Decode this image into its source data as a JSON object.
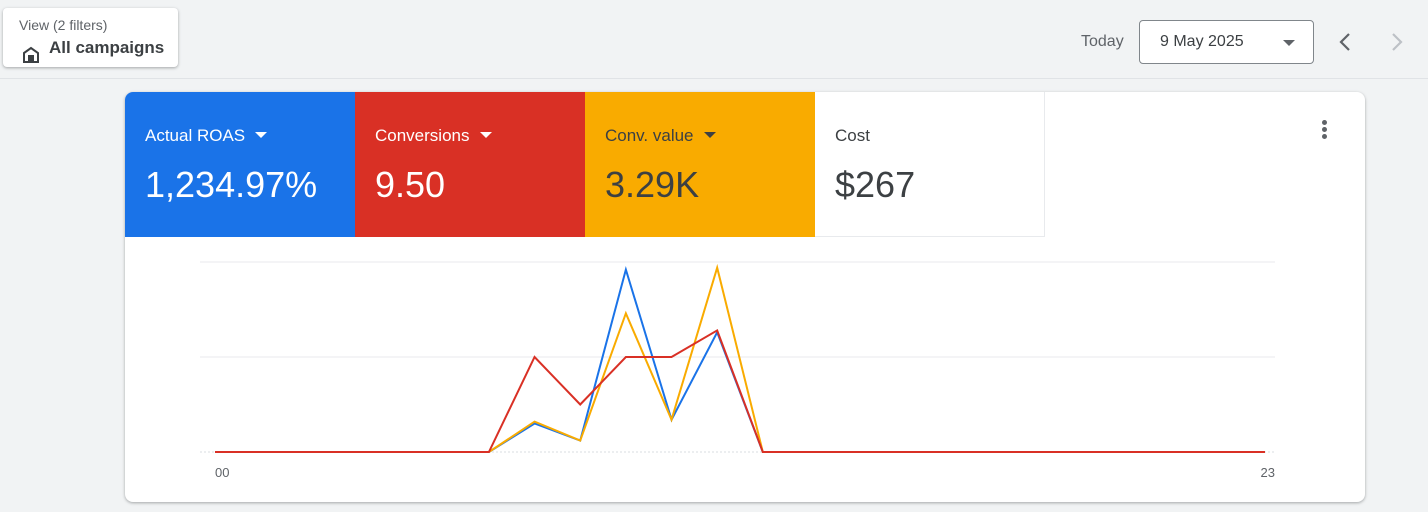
{
  "filters": {
    "label": "View (2 filters)",
    "value": "All campaigns",
    "icon": "store-icon"
  },
  "date_picker": {
    "label": "Today",
    "value": "9 May 2025",
    "prev_icon": "chevron-left-icon",
    "next_icon": "chevron-right-icon"
  },
  "metrics": [
    {
      "label": "Actual ROAS",
      "value": "1,234.97%",
      "color": "#1a73e8",
      "has_dropdown": true
    },
    {
      "label": "Conversions",
      "value": "9.50",
      "color": "#d93025",
      "has_dropdown": true
    },
    {
      "label": "Conv. value",
      "value": "3.29K",
      "color": "#f9ab00",
      "has_dropdown": true
    },
    {
      "label": "Cost",
      "value": "$267",
      "color": "#ffffff",
      "has_dropdown": false
    }
  ],
  "more_icon": "more-vert-icon",
  "chart_data": {
    "type": "line",
    "x": [
      0,
      1,
      2,
      3,
      4,
      5,
      6,
      7,
      8,
      9,
      10,
      11,
      12,
      13,
      14,
      15,
      16,
      17,
      18,
      19,
      20,
      21,
      22,
      23
    ],
    "x_tick_labels": [
      "00",
      "23"
    ],
    "ylim": [
      0,
      1
    ],
    "grid": true,
    "series": [
      {
        "color": "#1a73e8",
        "values": [
          0,
          0,
          0,
          0,
          0,
          0,
          0,
          0.15,
          0.06,
          0.96,
          0.17,
          0.63,
          0,
          0,
          0,
          0,
          0,
          0,
          0,
          0,
          0,
          0,
          0,
          0
        ]
      },
      {
        "color": "#f9ab00",
        "values": [
          0,
          0,
          0,
          0,
          0,
          0,
          0,
          0.16,
          0.06,
          0.73,
          0.17,
          0.97,
          0,
          0,
          0,
          0,
          0,
          0,
          0,
          0,
          0,
          0,
          0,
          0
        ]
      },
      {
        "color": "#d93025",
        "values": [
          0,
          0,
          0,
          0,
          0,
          0,
          0,
          0.5,
          0.25,
          0.5,
          0.5,
          0.64,
          0,
          0,
          0,
          0,
          0,
          0,
          0,
          0,
          0,
          0,
          0,
          0
        ]
      }
    ]
  }
}
